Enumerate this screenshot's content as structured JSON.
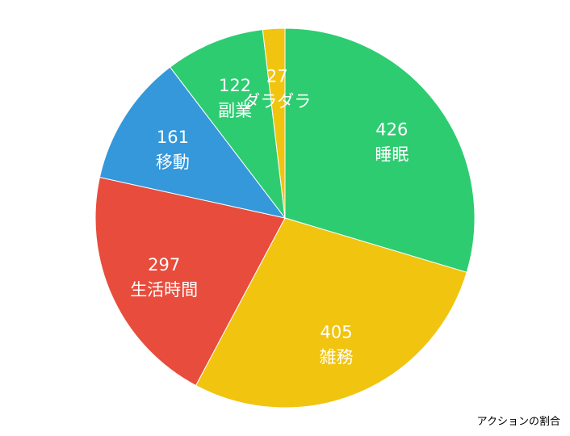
{
  "chart_data": {
    "type": "pie",
    "caption": "アクションの割合",
    "start_angle_deg": 0,
    "direction": "clockwise",
    "slices": [
      {
        "label": "睡眠",
        "value": 426,
        "color": "#2ecc71"
      },
      {
        "label": "雑務",
        "value": 405,
        "color": "#f1c40f"
      },
      {
        "label": "生活時間",
        "value": 297,
        "color": "#e74c3c"
      },
      {
        "label": "移動",
        "value": 161,
        "color": "#3498db"
      },
      {
        "label": "副業",
        "value": 122,
        "color": "#2ecc71"
      },
      {
        "label": "ダラダラ",
        "value": 27,
        "color": "#f1c40f"
      }
    ]
  }
}
